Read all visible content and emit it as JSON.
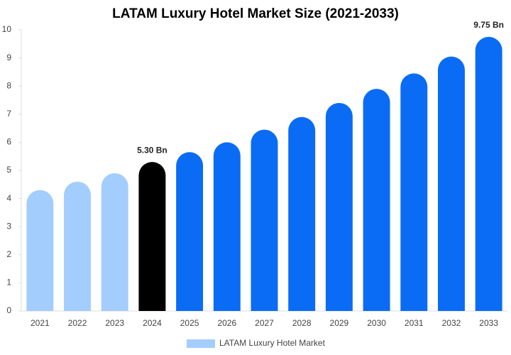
{
  "chart_data": {
    "type": "bar",
    "title": "LATAM Luxury Hotel Market Size (2021-2033)",
    "categories": [
      "2021",
      "2022",
      "2023",
      "2024",
      "2025",
      "2026",
      "2027",
      "2028",
      "2029",
      "2030",
      "2031",
      "2032",
      "2033"
    ],
    "series": [
      {
        "name": "LATAM Luxury Hotel Market",
        "color": "#a3cdfd",
        "values": [
          4.3,
          4.6,
          4.9,
          5.3,
          5.65,
          6.0,
          6.45,
          6.9,
          7.4,
          7.9,
          8.45,
          9.05,
          9.75
        ],
        "colors": [
          "#a3cdfd",
          "#a3cdfd",
          "#a3cdfd",
          "#000000",
          "#0a6cf5",
          "#0a6cf5",
          "#0a6cf5",
          "#0a6cf5",
          "#0a6cf5",
          "#0a6cf5",
          "#0a6cf5",
          "#0a6cf5",
          "#0a6cf5"
        ],
        "value_labels": [
          null,
          null,
          null,
          "5.30 Bn",
          null,
          null,
          null,
          null,
          null,
          null,
          null,
          null,
          "9.75 Bn"
        ]
      }
    ],
    "ylim": [
      0,
      10
    ],
    "yticks": [
      0,
      1,
      2,
      3,
      4,
      5,
      6,
      7,
      8,
      9,
      10
    ],
    "grid": false,
    "legend": "bottom"
  }
}
